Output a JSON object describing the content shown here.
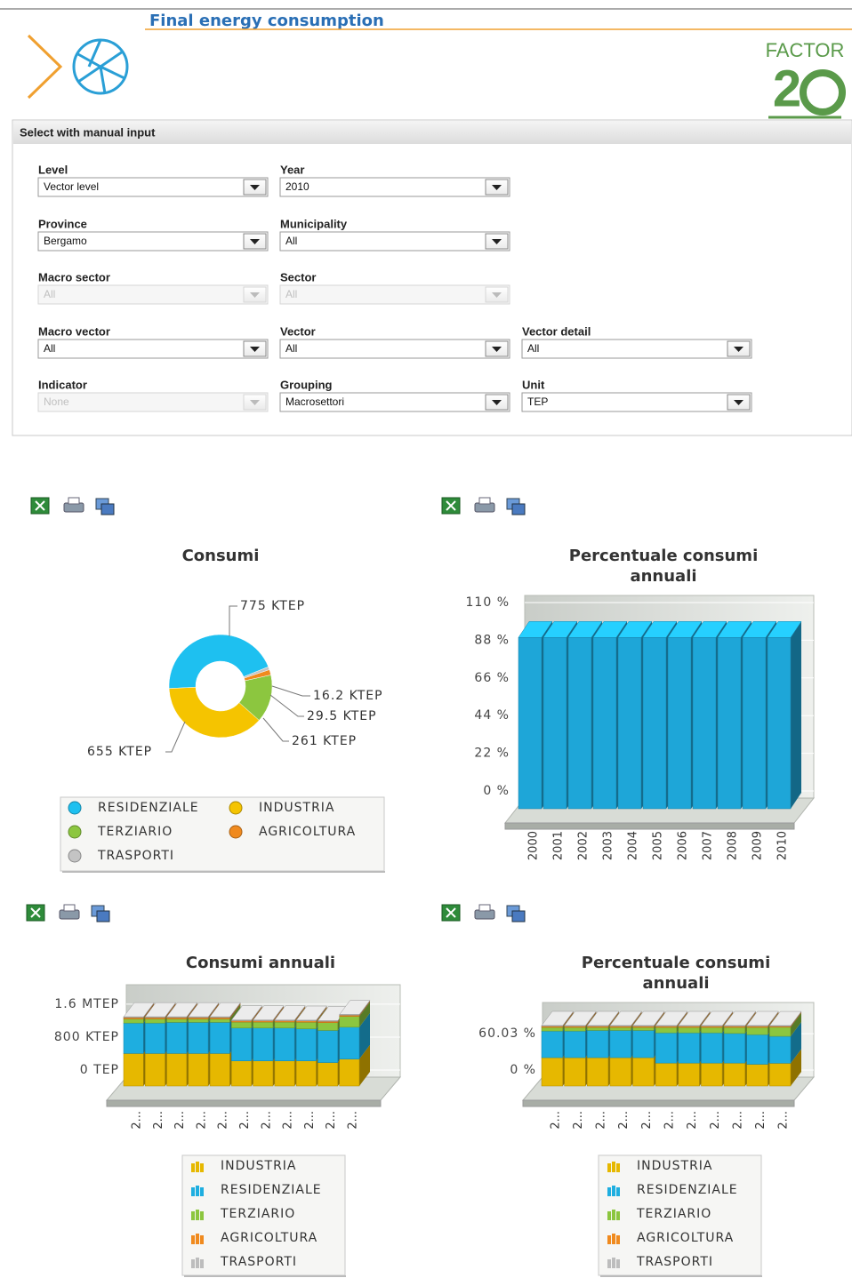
{
  "header": {
    "title": "Final energy consumption",
    "logo": "FACTOR",
    "logo_number": "2"
  },
  "form": {
    "title": "Select with manual input",
    "rows": [
      [
        {
          "label": "Level",
          "value": "Vector level"
        },
        {
          "label": "Year",
          "value": "2010"
        }
      ],
      [
        {
          "label": "Province",
          "value": "Bergamo"
        },
        {
          "label": "Municipality",
          "value": "All"
        }
      ],
      [
        {
          "label": "Macro sector",
          "value": "All",
          "disabled": true
        },
        {
          "label": "Sector",
          "value": "All",
          "disabled": true
        }
      ],
      [
        {
          "label": "Macro vector",
          "value": "All"
        },
        {
          "label": "Vector",
          "value": "All"
        },
        {
          "label": "Vector detail",
          "value": "All"
        }
      ],
      [
        {
          "label": "Indicator",
          "value": "None",
          "disabled": true
        },
        {
          "label": "Grouping",
          "value": "Macrosettori"
        },
        {
          "label": "Unit",
          "value": "TEP"
        }
      ]
    ]
  },
  "chart_data": [
    {
      "type": "pie",
      "donut": true,
      "title": "Consumi",
      "categories": [
        "RESIDENZIALE",
        "INDUSTRIA",
        "TERZIARIO",
        "AGRICOLTURA",
        "TRASPORTI"
      ],
      "values": [
        775,
        655,
        261,
        29.5,
        16.2
      ],
      "value_labels": [
        "775 KTEP",
        "655 KTEP",
        "261 KTEP",
        "29.5 KTEP",
        "16.2 KTEP"
      ],
      "colors": [
        "#1ec0f0",
        "#f5c400",
        "#8cc63f",
        "#f08a1e",
        "#c4c4c4"
      ]
    },
    {
      "type": "bar",
      "title": "Percentuale consumi annuali",
      "categories": [
        "2000",
        "2001",
        "2002",
        "2003",
        "2004",
        "2005",
        "2006",
        "2007",
        "2008",
        "2009",
        "2010"
      ],
      "values": [
        100,
        100,
        100,
        100,
        100,
        100,
        100,
        100,
        100,
        100,
        100
      ],
      "color": "#1ea6d8",
      "ylim": [
        0,
        110
      ],
      "yticks": [
        {
          "value": 0,
          "label": "0 %"
        },
        {
          "value": 22,
          "label": "22 %"
        },
        {
          "value": 44,
          "label": "44 %"
        },
        {
          "value": 66,
          "label": "66 %"
        },
        {
          "value": 88,
          "label": "88 %"
        },
        {
          "value": 110,
          "label": "110 %"
        }
      ],
      "grid": true
    },
    {
      "type": "stacked_bar",
      "title": "Consumi annuali",
      "categories": [
        "2...",
        "2...",
        "2...",
        "2...",
        "2...",
        "2...",
        "2...",
        "2...",
        "2...",
        "2...",
        "2..."
      ],
      "series": [
        {
          "name": "INDUSTRIA",
          "color": "#e6b800",
          "values": [
            790000,
            790000,
            790000,
            790000,
            790000,
            610000,
            610000,
            610000,
            610000,
            570000,
            655000
          ]
        },
        {
          "name": "RESIDENZIALE",
          "color": "#1eaee0",
          "values": [
            740000,
            740000,
            756000,
            756000,
            756000,
            800000,
            800000,
            800000,
            780000,
            780000,
            775000
          ]
        },
        {
          "name": "TERZIARIO",
          "color": "#8cc63f",
          "values": [
            100000,
            100000,
            84000,
            84000,
            84000,
            144000,
            144000,
            144000,
            160000,
            190000,
            261000
          ]
        },
        {
          "name": "AGRICOLTURA",
          "color": "#f08a1e",
          "values": [
            34000,
            34000,
            34000,
            34000,
            34000,
            32000,
            32000,
            32000,
            31000,
            30000,
            29500
          ]
        },
        {
          "name": "TRASPORTI",
          "color": "#bdbdbd",
          "values": [
            17000,
            17000,
            17000,
            17000,
            17000,
            17000,
            17000,
            17000,
            16500,
            16500,
            16200
          ]
        }
      ],
      "ylim": [
        0,
        1900000
      ],
      "yticks": [
        {
          "value": 0,
          "label": "0 TEP"
        },
        {
          "value": 800000,
          "label": "800 KTEP"
        },
        {
          "value": 1600000,
          "label": "1.6 MTEP"
        }
      ],
      "grid": true
    },
    {
      "type": "stacked_bar",
      "title": "Percentuale consumi annuali",
      "categories": [
        "2...",
        "2...",
        "2...",
        "2...",
        "2...",
        "2...",
        "2...",
        "2...",
        "2...",
        "2...",
        "2..."
      ],
      "series": [
        {
          "name": "INDUSTRIA",
          "color": "#e6b800",
          "values": [
            47,
            47,
            47,
            47,
            47,
            38,
            38,
            38,
            38,
            36,
            37.7
          ]
        },
        {
          "name": "RESIDENZIALE",
          "color": "#1eaee0",
          "values": [
            44,
            44,
            45,
            45,
            45,
            50,
            50,
            50,
            49,
            49,
            44.6
          ]
        },
        {
          "name": "TERZIARIO",
          "color": "#8cc63f",
          "values": [
            6,
            6,
            5,
            5,
            5,
            9,
            9,
            9,
            10,
            12,
            15
          ]
        },
        {
          "name": "AGRICOLTURA",
          "color": "#f08a1e",
          "values": [
            2,
            2,
            2,
            2,
            2,
            2,
            2,
            2,
            2,
            2,
            1.7
          ]
        },
        {
          "name": "TRASPORTI",
          "color": "#bdbdbd",
          "values": [
            1,
            1,
            1,
            1,
            1,
            1,
            1,
            1,
            1,
            1,
            0.9
          ]
        }
      ],
      "ylim": [
        0,
        100
      ],
      "yticks": [
        {
          "value": 0,
          "label": "0 %"
        },
        {
          "value": 60.03,
          "label": "60.03 %"
        }
      ],
      "grid": true
    }
  ]
}
